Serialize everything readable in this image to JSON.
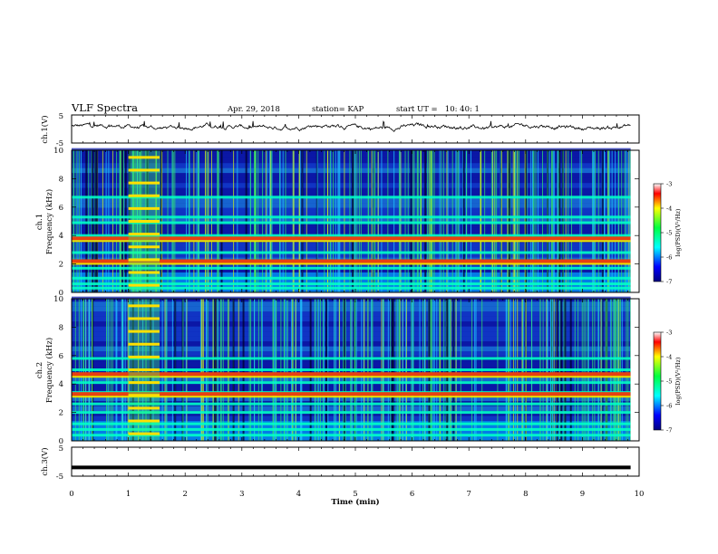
{
  "header": {
    "title": "VLF Spectra",
    "date": "Apr. 29, 2018",
    "station": "station= KAP",
    "start": "start UT =   10: 40: 1"
  },
  "chart_data": [
    {
      "type": "line",
      "panel": "ch1-waveform",
      "ylabel": "ch.1(V)",
      "ylim": [
        -5,
        5
      ],
      "yticks": [
        "5",
        "-5"
      ],
      "xlim": [
        0,
        10
      ],
      "note": "noisy waveform hovering near 0 V with peaks to about +2.5 V"
    },
    {
      "type": "heatmap",
      "panel": "ch1-spectrogram",
      "ylabel_line1": "ch.1",
      "ylabel_line2": "Frequency (kHz)",
      "ylim": [
        0,
        10
      ],
      "yticks": [
        "0",
        "2",
        "4",
        "6",
        "8",
        "10"
      ],
      "xlim": [
        0,
        10
      ],
      "colorbar": {
        "label": "log(PSD)(V²/Hz)",
        "range": [
          -7,
          -3
        ],
        "ticks": [
          "-3",
          "-4",
          "-5",
          "-6",
          "-7"
        ]
      },
      "bands_khz": [
        0.3,
        0.6,
        1.0,
        1.7,
        2.2,
        2.8,
        3.7,
        4.0,
        4.9,
        5.3,
        6.7
      ],
      "strong_bands_khz": [
        2.2,
        3.8
      ],
      "burst_interval_min": [
        1.0,
        1.55
      ]
    },
    {
      "type": "heatmap",
      "panel": "ch2-spectrogram",
      "ylabel_line1": "ch.2",
      "ylabel_line2": "Frequency (kHz)",
      "ylim": [
        0,
        10
      ],
      "yticks": [
        "0",
        "2",
        "4",
        "6",
        "8",
        "10"
      ],
      "xlim": [
        0,
        10
      ],
      "colorbar": {
        "label": "log(PSD)(V²/Hz)",
        "range": [
          -7,
          -3
        ],
        "ticks": [
          "-3",
          "-4",
          "-5",
          "-6",
          "-7"
        ]
      },
      "bands_khz": [
        0.4,
        0.8,
        1.2,
        2.0,
        2.6,
        3.4,
        4.1,
        5.0,
        5.8
      ],
      "strong_bands_khz": [
        3.3,
        4.7
      ],
      "burst_interval_min": [
        1.0,
        1.55
      ]
    },
    {
      "type": "line",
      "panel": "ch3-waveform",
      "ylabel": "ch.3(V)",
      "ylim": [
        -5,
        5
      ],
      "yticks": [
        "5",
        "-5"
      ],
      "xlim": [
        0,
        10
      ],
      "x": [
        0,
        9.85
      ],
      "y": [
        -2,
        -2
      ]
    }
  ],
  "xaxis": {
    "label": "Time (min)",
    "ticks": [
      "0",
      "1",
      "2",
      "3",
      "4",
      "5",
      "6",
      "7",
      "8",
      "9",
      "10"
    ]
  },
  "colors": {
    "ink": "#000000",
    "deep_blue": "#00008b",
    "cyan": "#00c8ff",
    "green": "#3cff64",
    "yellow": "#f0f000",
    "red": "#ff0000"
  }
}
